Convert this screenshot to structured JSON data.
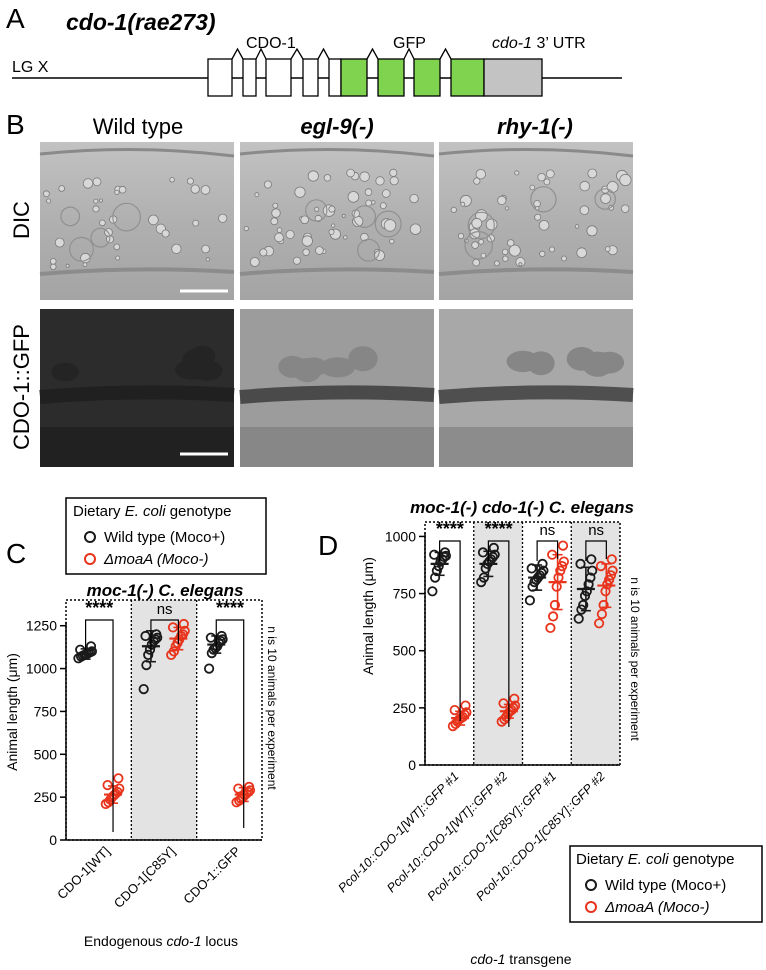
{
  "colors": {
    "wt": "#1a1a1a",
    "moaA": "#e8341c",
    "gfp_exon": "#7fd34e",
    "utr": "#c3c3c3",
    "shade": "#e3e3e3"
  },
  "panelA": {
    "letter": "A",
    "title": "cdo-1(rae273)",
    "lg": "LG X",
    "label_cdo": "CDO-1",
    "label_gfp": "GFP",
    "label_utr_italic": "cdo-1",
    "label_utr_rest": " 3’ UTR"
  },
  "panelB": {
    "letter": "B",
    "columns": [
      "Wild type",
      "egl-9(-)",
      "rhy-1(-)"
    ],
    "rows": [
      "DIC",
      "CDO-1::GFP"
    ]
  },
  "panelC": {
    "letter": "C",
    "legend": {
      "title_pre": "Dietary ",
      "title_italic": "E. coli",
      "title_post": " genotype",
      "wt_label": "Wild type (Moco+)",
      "moaA_label": "ΔmoaA (Moco-)"
    },
    "plot_title": "moc-1(-) C. elegans",
    "xlabel": "Endogenous cdo-1 locus",
    "note": "n is 10 animals per experiment"
  },
  "panelD": {
    "letter": "D",
    "plot_title": "moc-1(-) cdo-1(-) C. elegans",
    "xlabel_italic": "cdo-1",
    "xlabel_rest": " transgene",
    "note": "n is 10 animals per experiment",
    "legend": {
      "title_pre": "Dietary ",
      "title_italic": "E. coli",
      "title_post": " genotype",
      "wt_label": "Wild type (Moco+)",
      "moaA_label": "ΔmoaA (Moco-)"
    }
  },
  "chart_data": [
    {
      "type": "scatter",
      "panel": "C",
      "title": "moc-1(-) C. elegans",
      "xlabel": "Endogenous cdo-1 locus",
      "ylabel": "Animal length (μm)",
      "ylim": [
        0,
        1400
      ],
      "yticks": [
        0,
        250,
        500,
        750,
        1000,
        1250
      ],
      "categories": [
        "CDO-1[WT]",
        "CDO-1[C85Y]",
        "CDO-1::GFP"
      ],
      "shaded_categories": [
        1
      ],
      "series": [
        {
          "name": "Wild type (Moco+)",
          "means": [
            1085,
            1130,
            1140
          ],
          "sd": [
            30,
            90,
            50
          ],
          "points": [
            [
              1060,
              1070,
              1075,
              1080,
              1085,
              1090,
              1095,
              1100,
              1110,
              1130
            ],
            [
              880,
              1020,
              1080,
              1110,
              1140,
              1160,
              1170,
              1180,
              1190,
              1200
            ],
            [
              1000,
              1090,
              1110,
              1120,
              1130,
              1150,
              1160,
              1170,
              1180,
              1190
            ]
          ]
        },
        {
          "name": "ΔmoaA (Moco-)",
          "means": [
            265,
            1175,
            265
          ],
          "sd": [
            50,
            65,
            40
          ],
          "points": [
            [
              210,
              220,
              235,
              250,
              260,
              270,
              280,
              300,
              320,
              360
            ],
            [
              1080,
              1100,
              1130,
              1150,
              1170,
              1190,
              1200,
              1220,
              1240,
              1260
            ],
            [
              220,
              230,
              240,
              250,
              260,
              270,
              280,
              290,
              300,
              310
            ]
          ]
        }
      ],
      "significance": [
        "****",
        "ns",
        "****"
      ]
    },
    {
      "type": "scatter",
      "panel": "D",
      "title": "moc-1(-) cdo-1(-) C. elegans",
      "xlabel": "cdo-1 transgene",
      "ylabel": "Animal length (μm)",
      "ylim": [
        0,
        1050
      ],
      "yticks": [
        0,
        250,
        500,
        750,
        1000
      ],
      "categories": [
        "Pcol-10::CDO-1[WT]::GFP #1",
        "Pcol-10::CDO-1[WT]::GFP #2",
        "Pcol-10::CDO-1[C85Y]::GFP #1",
        "Pcol-10::CDO-1[C85Y]::GFP #2"
      ],
      "shaded_categories": [
        1,
        3
      ],
      "series": [
        {
          "name": "Wild type (Moco+)",
          "means": [
            880,
            880,
            820,
            770
          ],
          "sd": [
            50,
            55,
            55,
            95
          ],
          "points": [
            [
              760,
              820,
              850,
              870,
              890,
              900,
              910,
              915,
              920,
              930
            ],
            [
              800,
              820,
              860,
              880,
              890,
              900,
              910,
              920,
              930,
              950
            ],
            [
              720,
              780,
              800,
              810,
              820,
              830,
              840,
              850,
              860,
              880
            ],
            [
              640,
              680,
              700,
              740,
              760,
              790,
              820,
              850,
              880,
              900
            ]
          ]
        },
        {
          "name": "ΔmoaA (Moco-)",
          "means": [
            205,
            235,
            800,
            785
          ],
          "sd": [
            30,
            30,
            120,
            95
          ],
          "points": [
            [
              170,
              180,
              190,
              200,
              205,
              210,
              220,
              230,
              240,
              260
            ],
            [
              190,
              200,
              210,
              225,
              235,
              240,
              250,
              260,
              270,
              290
            ],
            [
              600,
              650,
              700,
              780,
              820,
              850,
              870,
              890,
              920,
              960
            ],
            [
              620,
              660,
              700,
              760,
              790,
              810,
              830,
              850,
              870,
              900
            ]
          ]
        }
      ],
      "significance": [
        "****",
        "****",
        "ns",
        "ns"
      ]
    }
  ]
}
